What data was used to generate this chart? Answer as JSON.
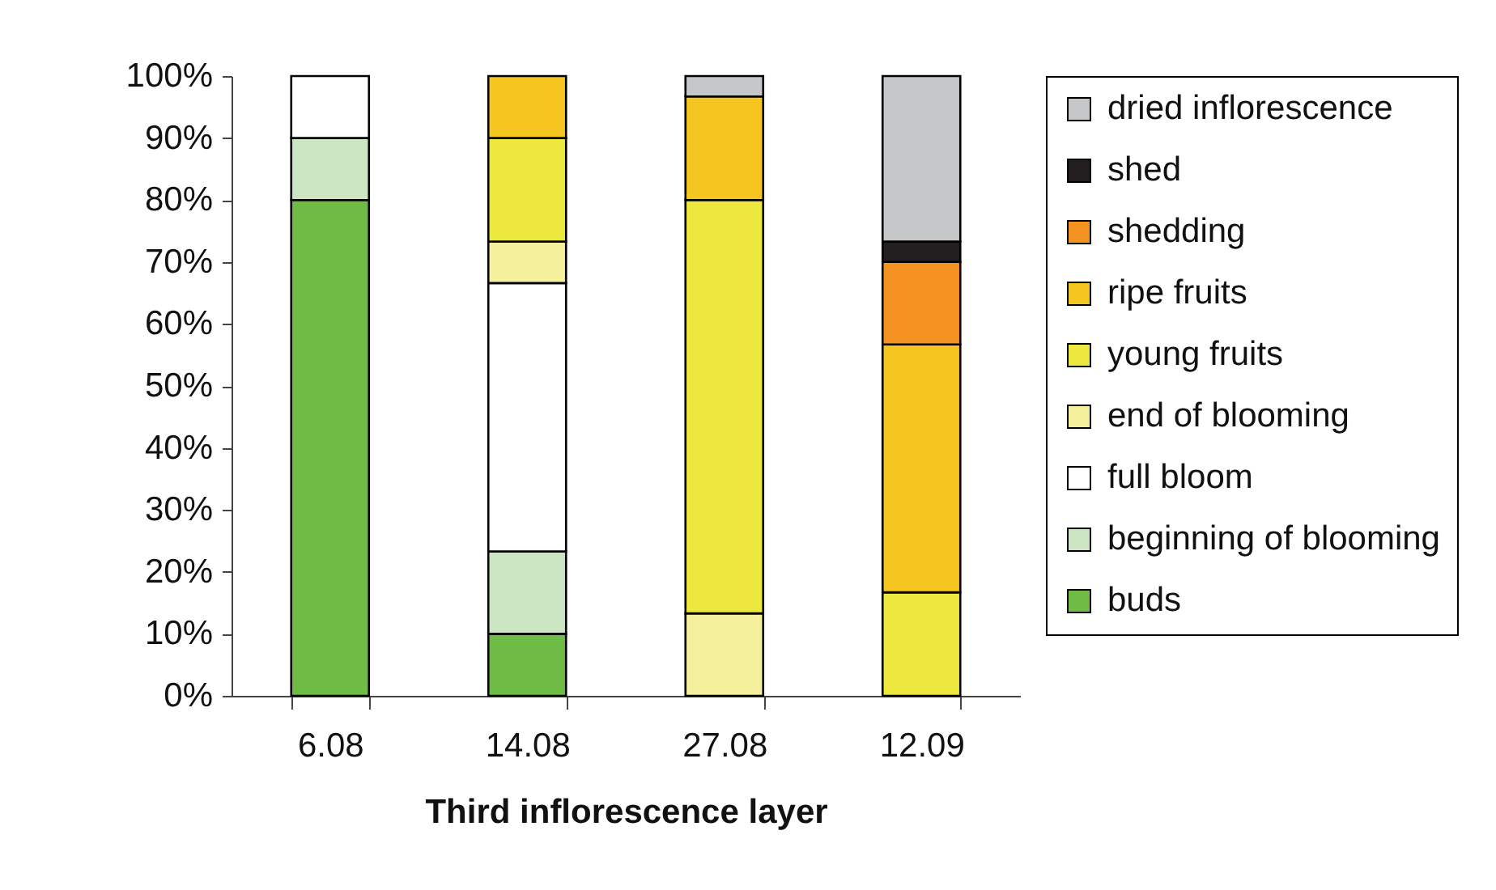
{
  "chart_data": {
    "type": "bar",
    "stacked": true,
    "xlabel": "Third inflorescence layer",
    "categories": [
      "6.08",
      "14.08",
      "27.08",
      "12.09"
    ],
    "series": [
      {
        "name": "buds",
        "color": "#6ebc45",
        "values": [
          80,
          10,
          null,
          null
        ]
      },
      {
        "name": "beginning of blooming",
        "color": "#cce6c4",
        "values": [
          10,
          13.3,
          null,
          null
        ]
      },
      {
        "name": "full bloom",
        "color": "#ffffff",
        "values": [
          10,
          43.3,
          null,
          null
        ]
      },
      {
        "name": "end of blooming",
        "color": "#f4f09c",
        "values": [
          null,
          6.7,
          13.3,
          null
        ]
      },
      {
        "name": "young fruits",
        "color": "#ede83e",
        "values": [
          null,
          16.7,
          66.7,
          16.7
        ]
      },
      {
        "name": "ripe fruits",
        "color": "#f5c61f",
        "values": [
          null,
          10,
          16.7,
          40
        ]
      },
      {
        "name": "shedding",
        "color": "#f39221",
        "values": [
          null,
          null,
          null,
          13.3
        ]
      },
      {
        "name": "shed",
        "color": "#231f20",
        "values": [
          null,
          null,
          null,
          3.3
        ]
      },
      {
        "name": "dried inflorescence",
        "color": "#c6c7c9",
        "values": [
          null,
          null,
          3.3,
          26.7
        ]
      }
    ],
    "ylim": [
      0,
      100
    ],
    "yticks": [
      {
        "value": 0,
        "label": "0%"
      },
      {
        "value": 10,
        "label": "10%"
      },
      {
        "value": 20,
        "label": "20%"
      },
      {
        "value": 30,
        "label": "30%"
      },
      {
        "value": 40,
        "label": "40%"
      },
      {
        "value": 50,
        "label": "50%"
      },
      {
        "value": 60,
        "label": "60%"
      },
      {
        "value": 70,
        "label": "70%"
      },
      {
        "value": 80,
        "label": "80%"
      },
      {
        "value": 90,
        "label": "90%"
      },
      {
        "value": 100,
        "label": "100%"
      }
    ],
    "grid": false,
    "legend": "right"
  }
}
